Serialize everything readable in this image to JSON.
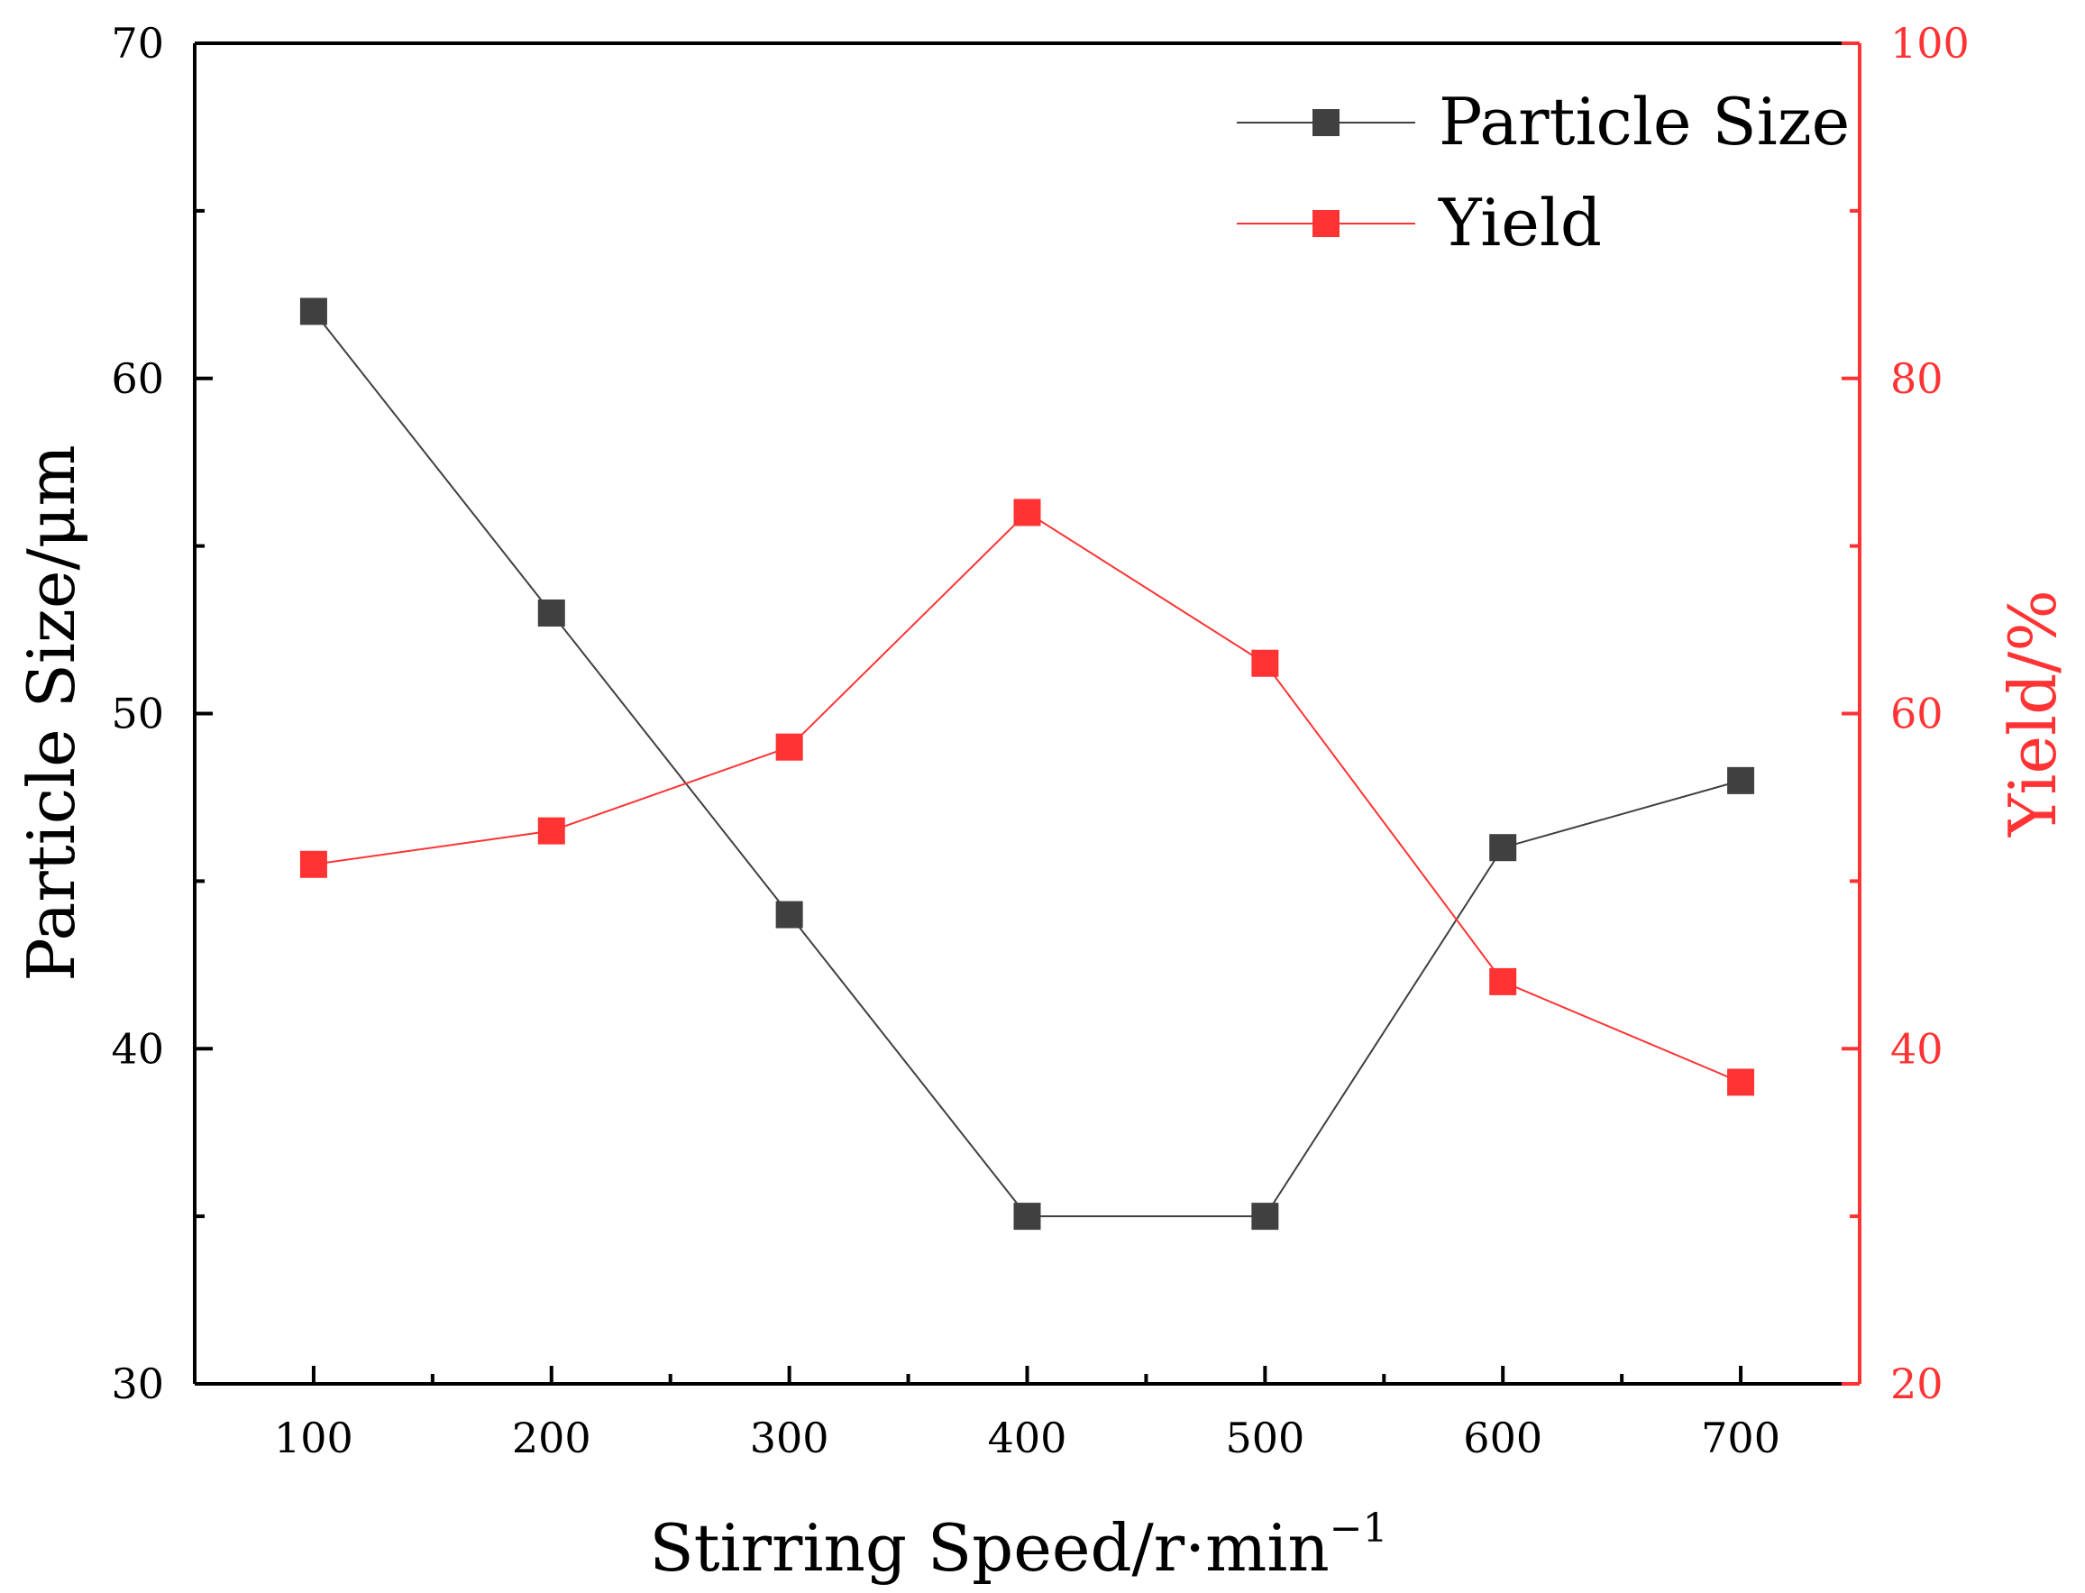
{
  "chart_data": {
    "type": "line",
    "x": [
      100,
      200,
      300,
      400,
      500,
      600,
      700
    ],
    "xlabel": "Stirring Speed/r·min",
    "xlabel_superscript": "−1",
    "xlim": [
      50,
      750
    ],
    "xticks": [
      "100",
      "200",
      "300",
      "400",
      "500",
      "600",
      "700"
    ],
    "ylabel": "Particle Size/μm",
    "ylim": [
      30,
      70
    ],
    "yticks": [
      "30",
      "40",
      "50",
      "60",
      "70"
    ],
    "y2label": "Yield/%",
    "y2lim": [
      20,
      100
    ],
    "y2ticks": [
      "20",
      "40",
      "60",
      "80",
      "100"
    ],
    "grid": false,
    "legend_position": "top-right",
    "series": [
      {
        "name": "Particle Size",
        "axis": "left",
        "color": "#404040",
        "marker": "square",
        "values": [
          62,
          53,
          44,
          35,
          35,
          46,
          48
        ]
      },
      {
        "name": "Yield",
        "axis": "right",
        "color": "#ff3333",
        "marker": "square",
        "values": [
          51,
          53,
          58,
          72,
          63,
          44,
          38
        ]
      }
    ],
    "colors": {
      "axis": "#000000",
      "right_axis": "#ff3333"
    }
  }
}
